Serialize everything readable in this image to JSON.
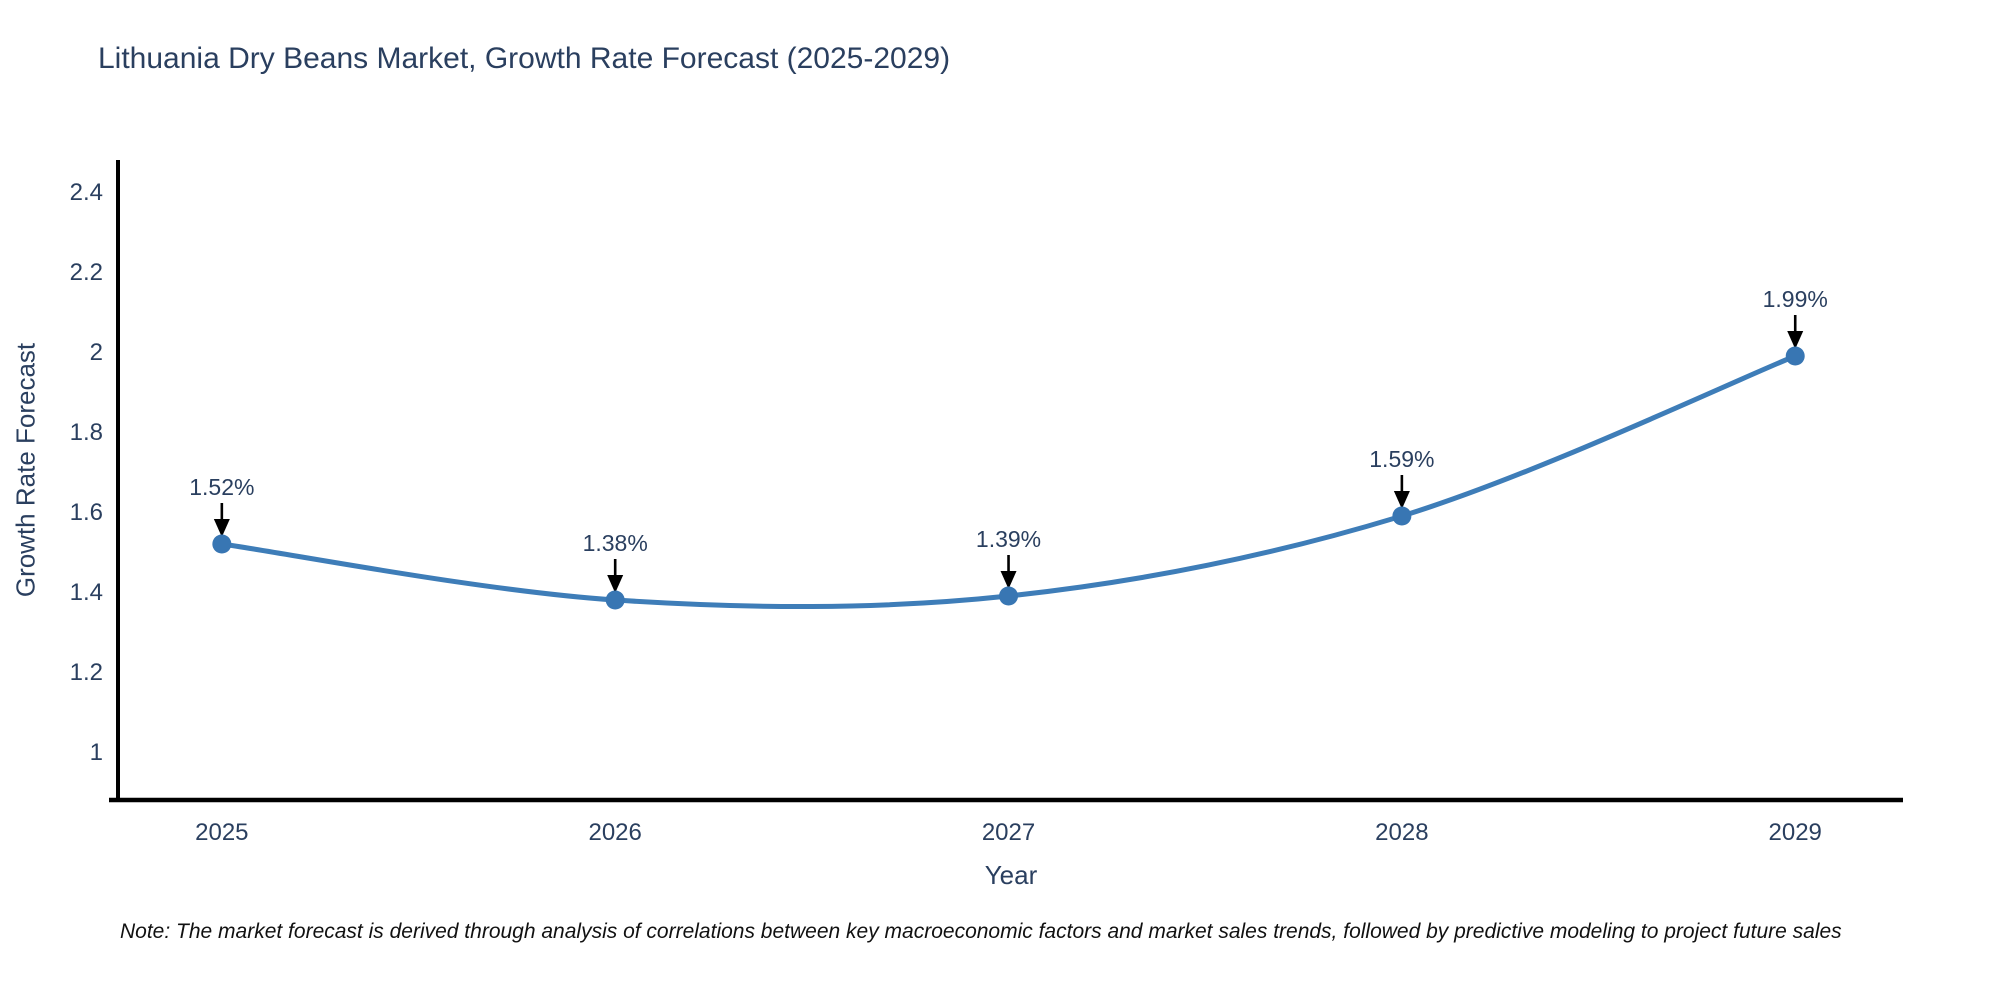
{
  "title": "Lithuania Dry Beans Market, Growth Rate Forecast (2025-2029)",
  "note": "Note: The market forecast is derived through analysis of correlations between key macroeconomic factors and market sales trends, followed by predictive modeling to project future sales",
  "chart_data": {
    "type": "line",
    "title": "Lithuania Dry Beans Market, Growth Rate Forecast (2025-2029)",
    "xlabel": "Year",
    "ylabel": "Growth Rate Forecast",
    "x": [
      2025,
      2026,
      2027,
      2028,
      2029
    ],
    "values": [
      1.52,
      1.38,
      1.39,
      1.59,
      1.99
    ],
    "point_labels": [
      "1.52%",
      "1.38%",
      "1.39%",
      "1.59%",
      "1.99%"
    ],
    "xtick_labels": [
      "2025",
      "2026",
      "2027",
      "2028",
      "2029"
    ],
    "ytick_values": [
      1,
      1.2,
      1.4,
      1.6,
      1.8,
      2,
      2.2,
      2.4
    ],
    "ytick_labels": [
      "1",
      "1.2",
      "1.4",
      "1.6",
      "1.8",
      "2",
      "2.2",
      "2.4"
    ],
    "xlim": [
      2024.736,
      2029.274
    ],
    "ylim": [
      0.88,
      2.48
    ],
    "grid": false,
    "legend": "none",
    "line_style": "spline",
    "colors": {
      "line": "#3e7db8",
      "marker": "#3876b3",
      "axis": "#000000",
      "tick_text": "#2a3f5f",
      "annotation_text": "#2a3f5f",
      "arrow": "#000000"
    }
  }
}
